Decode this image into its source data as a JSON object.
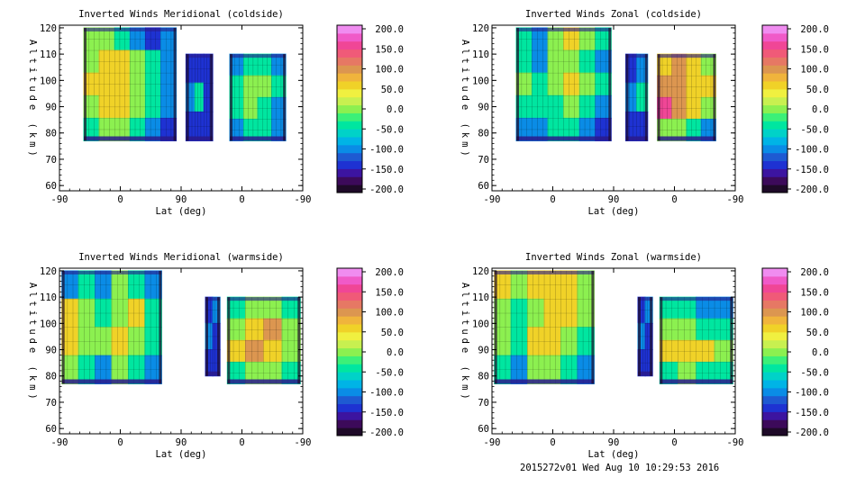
{
  "footer": "2015272v01 Wed Aug 10 10:29:53 2016",
  "colorbar": {
    "ticks": [
      "200.0",
      "150.0",
      "100.0",
      "50.0",
      "0.0",
      "-50.0",
      "-100.0",
      "-150.0",
      "-200.0"
    ],
    "colors": [
      "#1e0a28",
      "#3c0a5a",
      "#3c14a0",
      "#1e32d2",
      "#1e5ad2",
      "#0a8ce6",
      "#00b4e6",
      "#00d2c8",
      "#00e6a0",
      "#3cf078",
      "#8cf050",
      "#c8f050",
      "#f0f040",
      "#f0d228",
      "#f0b43c",
      "#dc9650",
      "#e67864",
      "#f05a78",
      "#f04696",
      "#f05ac8",
      "#f08cf0"
    ]
  },
  "chart_data": [
    {
      "type": "heatmap",
      "title": "Inverted Winds Meridional (coldside)",
      "xlabel": "Lat (deg)",
      "ylabel": "Altitude (km)",
      "xticks": [
        "-90",
        "0",
        "90",
        "0",
        "-90"
      ],
      "yticks": [
        "60",
        "70",
        "80",
        "90",
        "100",
        "110",
        "120"
      ],
      "ylim": [
        58,
        121
      ],
      "values_range": [
        -200,
        200
      ],
      "columns": [
        {
          "x0": 0.1,
          "x1": 0.48,
          "z0": 77,
          "z1": 120,
          "cells": [
            [
              0,
              0,
              -50,
              -100,
              -150,
              -100
            ],
            [
              0,
              50,
              50,
              0,
              -50,
              -100
            ],
            [
              50,
              50,
              50,
              0,
              -50,
              -100
            ],
            [
              0,
              50,
              50,
              0,
              -50,
              -100
            ],
            [
              -50,
              0,
              0,
              -50,
              -100,
              -150
            ]
          ]
        },
        {
          "x0": 0.52,
          "x1": 0.63,
          "z0": 77,
          "z1": 110,
          "cells": [
            [
              -150,
              -150,
              -150
            ],
            [
              -100,
              -50,
              -150
            ],
            [
              -150,
              -150,
              -150
            ]
          ]
        },
        {
          "x0": 0.7,
          "x1": 0.93,
          "z0": 77,
          "z1": 110,
          "cells": [
            [
              -100,
              -50,
              -50,
              -100
            ],
            [
              -50,
              0,
              0,
              -50
            ],
            [
              -50,
              0,
              -50,
              -100
            ],
            [
              -100,
              -50,
              -50,
              -100
            ]
          ]
        }
      ]
    },
    {
      "type": "heatmap",
      "title": "Inverted Winds Zonal (coldside)",
      "xlabel": "Lat (deg)",
      "ylabel": "Altitude (km)",
      "xticks": [
        "-90",
        "0",
        "90",
        "0",
        "-90"
      ],
      "yticks": [
        "60",
        "70",
        "80",
        "90",
        "100",
        "110",
        "120"
      ],
      "ylim": [
        58,
        121
      ],
      "values_range": [
        -200,
        200
      ],
      "columns": [
        {
          "x0": 0.1,
          "x1": 0.49,
          "z0": 77,
          "z1": 120,
          "cells": [
            [
              -50,
              -100,
              0,
              50,
              0,
              -50
            ],
            [
              -50,
              -100,
              0,
              0,
              -50,
              -100
            ],
            [
              0,
              -50,
              0,
              50,
              0,
              -50
            ],
            [
              -50,
              -50,
              -50,
              0,
              -50,
              -100
            ],
            [
              -100,
              -100,
              -50,
              -50,
              -100,
              -150
            ]
          ]
        },
        {
          "x0": 0.55,
          "x1": 0.64,
          "z0": 77,
          "z1": 110,
          "cells": [
            [
              -150,
              -100
            ],
            [
              -100,
              -50
            ],
            [
              -150,
              -150
            ]
          ]
        },
        {
          "x0": 0.68,
          "x1": 0.92,
          "z0": 77,
          "z1": 110,
          "cells": [
            [
              50,
              100,
              50,
              0
            ],
            [
              100,
              100,
              50,
              50
            ],
            [
              150,
              100,
              50,
              0
            ],
            [
              0,
              0,
              -50,
              -100
            ]
          ]
        }
      ]
    },
    {
      "type": "heatmap",
      "title": "Inverted Winds Meridional (warmside)",
      "xlabel": "Lat (deg)",
      "ylabel": "Altitude (km)",
      "xticks": [
        "-90",
        "0",
        "90",
        "0",
        "-90"
      ],
      "yticks": [
        "60",
        "70",
        "80",
        "90",
        "100",
        "110",
        "120"
      ],
      "ylim": [
        58,
        121
      ],
      "values_range": [
        -200,
        200
      ],
      "columns": [
        {
          "x0": 0.01,
          "x1": 0.42,
          "z0": 77,
          "z1": 120,
          "cells": [
            [
              -100,
              -50,
              -100,
              0,
              -50,
              -100
            ],
            [
              50,
              0,
              -50,
              0,
              50,
              -50
            ],
            [
              50,
              0,
              0,
              50,
              0,
              -50
            ],
            [
              0,
              -50,
              -100,
              0,
              -50,
              -100
            ]
          ]
        },
        {
          "x0": 0.6,
          "x1": 0.66,
          "z0": 80,
          "z1": 110,
          "cells": [
            [
              -150,
              -100
            ],
            [
              -100,
              -150
            ],
            [
              -150,
              -150
            ]
          ]
        },
        {
          "x0": 0.69,
          "x1": 0.99,
          "z0": 77,
          "z1": 110,
          "cells": [
            [
              -50,
              0,
              0,
              -50
            ],
            [
              0,
              50,
              100,
              0
            ],
            [
              50,
              100,
              50,
              0
            ],
            [
              -50,
              0,
              0,
              -50
            ]
          ]
        }
      ]
    },
    {
      "type": "heatmap",
      "title": "Inverted Winds Zonal (warmside)",
      "xlabel": "Lat (deg)",
      "ylabel": "Altitude (km)",
      "xticks": [
        "-90",
        "0",
        "90",
        "0",
        "-90"
      ],
      "yticks": [
        "60",
        "70",
        "80",
        "90",
        "100",
        "110",
        "120"
      ],
      "ylim": [
        58,
        121
      ],
      "values_range": [
        -200,
        200
      ],
      "columns": [
        {
          "x0": 0.01,
          "x1": 0.42,
          "z0": 77,
          "z1": 120,
          "cells": [
            [
              50,
              0,
              50,
              50,
              50,
              0
            ],
            [
              0,
              -50,
              0,
              50,
              50,
              0
            ],
            [
              0,
              -50,
              50,
              50,
              0,
              -50
            ],
            [
              -50,
              -100,
              0,
              0,
              -50,
              -100
            ]
          ]
        },
        {
          "x0": 0.6,
          "x1": 0.66,
          "z0": 80,
          "z1": 110,
          "cells": [
            [
              -150,
              -100
            ],
            [
              -100,
              -150
            ],
            [
              -150,
              -150
            ]
          ]
        },
        {
          "x0": 0.69,
          "x1": 0.99,
          "z0": 77,
          "z1": 110,
          "cells": [
            [
              -50,
              -50,
              -100,
              -100
            ],
            [
              0,
              0,
              -50,
              -50
            ],
            [
              50,
              50,
              50,
              0
            ],
            [
              -50,
              0,
              -50,
              -50
            ]
          ]
        }
      ]
    }
  ]
}
